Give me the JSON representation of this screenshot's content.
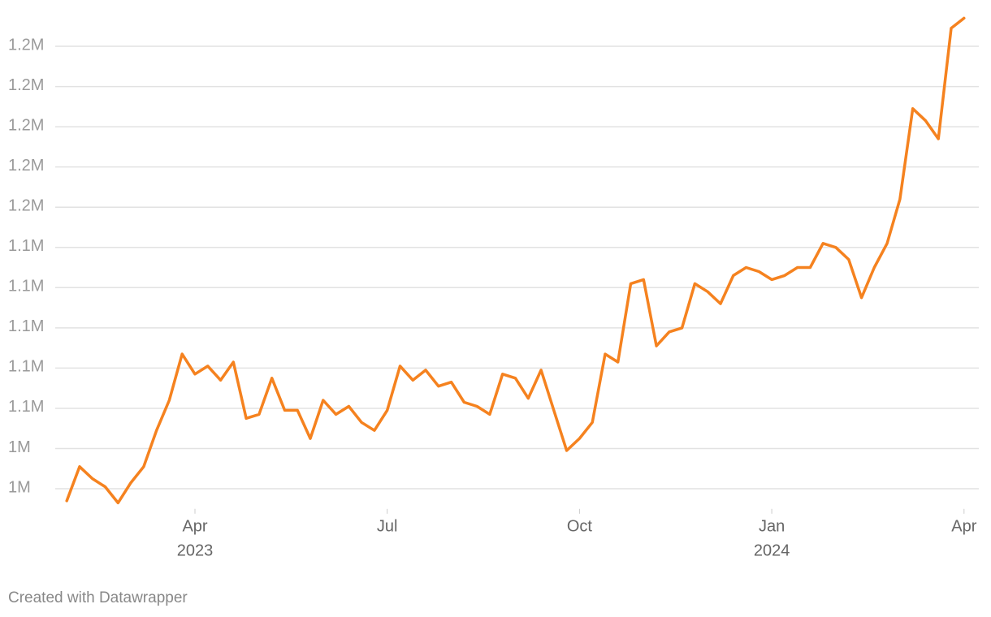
{
  "chart_data": {
    "type": "line",
    "x": [
      "2023-02",
      "2023-02",
      "2023-02",
      "2023-02",
      "2023-02",
      "2023-03",
      "2023-03",
      "2023-03",
      "2023-03",
      "2023-03",
      "2023-04",
      "2023-04",
      "2023-04",
      "2023-04",
      "2023-04",
      "2023-05",
      "2023-05",
      "2023-05",
      "2023-05",
      "2023-05",
      "2023-06",
      "2023-06",
      "2023-06",
      "2023-06",
      "2023-06",
      "2023-07",
      "2023-07",
      "2023-07",
      "2023-07",
      "2023-07",
      "2023-08",
      "2023-08",
      "2023-08",
      "2023-08",
      "2023-08",
      "2023-09",
      "2023-09",
      "2023-09",
      "2023-09",
      "2023-09",
      "2023-10",
      "2023-10",
      "2023-10",
      "2023-10",
      "2023-10",
      "2023-11",
      "2023-11",
      "2023-11",
      "2023-11",
      "2023-11",
      "2023-12",
      "2023-12",
      "2023-12",
      "2023-12",
      "2023-12",
      "2024-01",
      "2024-01",
      "2024-01",
      "2024-01",
      "2024-01",
      "2024-02",
      "2024-02",
      "2024-02",
      "2024-02",
      "2024-02",
      "2024-03",
      "2024-03",
      "2024-03",
      "2024-03",
      "2024-03",
      "2024-04"
    ],
    "series": [
      {
        "color": "#f5821f",
        "values": [
          1014000,
          1031000,
          1025000,
          1021000,
          1013000,
          1023000,
          1031000,
          1049000,
          1064000,
          1087000,
          1077000,
          1081000,
          1074000,
          1083000,
          1055000,
          1057000,
          1075000,
          1059000,
          1059000,
          1045000,
          1064000,
          1057000,
          1061000,
          1053000,
          1049000,
          1059000,
          1081000,
          1074000,
          1079000,
          1071000,
          1073000,
          1063000,
          1061000,
          1057000,
          1077000,
          1075000,
          1065000,
          1079000,
          1059000,
          1039000,
          1045000,
          1053000,
          1087000,
          1083000,
          1122000,
          1124000,
          1091000,
          1098000,
          1100000,
          1122000,
          1118000,
          1112000,
          1126000,
          1130000,
          1128000,
          1124000,
          1126000,
          1130000,
          1130000,
          1142000,
          1140000,
          1134000,
          1115000,
          1130000,
          1142000,
          1164000,
          1209000,
          1203000,
          1194000,
          1249000,
          1254000
        ]
      }
    ],
    "xlim": [
      "2023-02",
      "2024-04"
    ],
    "xticks": [
      {
        "value": "2023-04",
        "label": "Apr"
      },
      {
        "value": "2023-07",
        "label": "Jul"
      },
      {
        "value": "2023-10",
        "label": "Oct"
      },
      {
        "value": "2024-01",
        "label": "Jan"
      },
      {
        "value": "2024-04",
        "label": "Apr"
      }
    ],
    "xtick_years": [
      {
        "value": "2023-04",
        "label": "2023"
      },
      {
        "value": "2024-01",
        "label": "2024"
      }
    ],
    "ylim": [
      1010000,
      1260000
    ],
    "yticks": [
      {
        "value": 1020000,
        "label": "1M"
      },
      {
        "value": 1040000,
        "label": "1M"
      },
      {
        "value": 1060000,
        "label": "1.1M"
      },
      {
        "value": 1080000,
        "label": "1.1M"
      },
      {
        "value": 1100000,
        "label": "1.1M"
      },
      {
        "value": 1120000,
        "label": "1.1M"
      },
      {
        "value": 1140000,
        "label": "1.1M"
      },
      {
        "value": 1160000,
        "label": "1.2M"
      },
      {
        "value": 1180000,
        "label": "1.2M"
      },
      {
        "value": 1200000,
        "label": "1.2M"
      },
      {
        "value": 1220000,
        "label": "1.2M"
      },
      {
        "value": 1240000,
        "label": "1.2M"
      }
    ],
    "grid": true,
    "footer": "Created with Datawrapper"
  }
}
